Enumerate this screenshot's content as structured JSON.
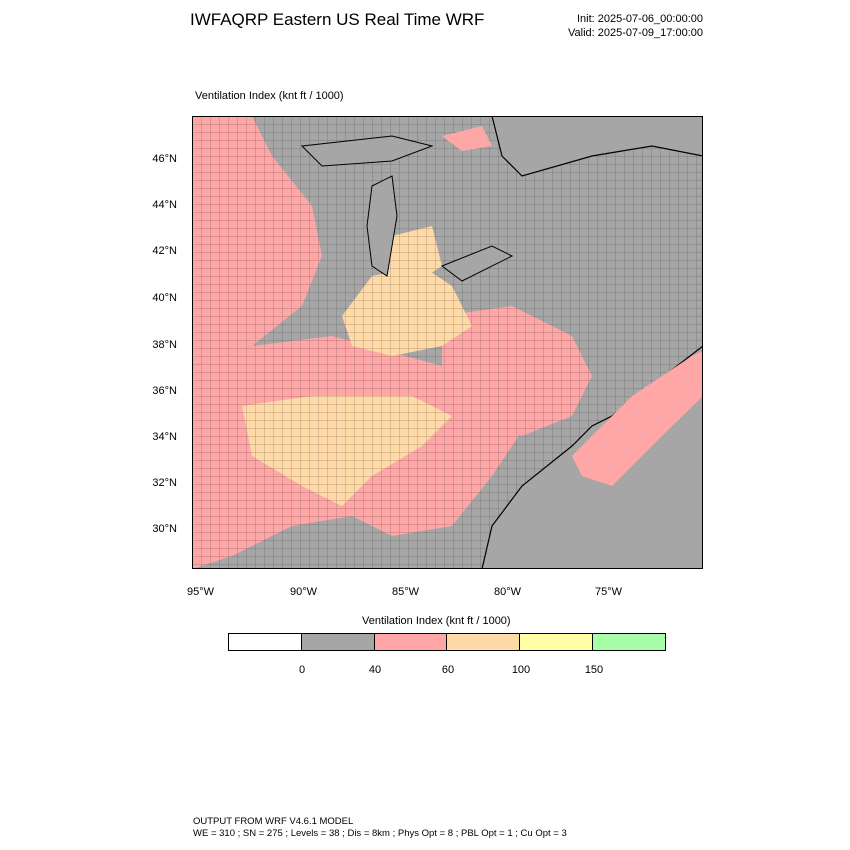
{
  "header": {
    "title": "IWFAQRP Eastern US Real Time WRF",
    "init": "Init: 2025-07-06_00:00:00",
    "valid": "Valid: 2025-07-09_17:00:00"
  },
  "map": {
    "field_label": "Ventilation Index   (knt ft / 1000)",
    "lat_labels": [
      "46°N",
      "44°N",
      "42°N",
      "40°N",
      "38°N",
      "36°N",
      "34°N",
      "32°N",
      "30°N"
    ],
    "lon_labels": [
      "95°W",
      "90°W",
      "85°W",
      "80°W",
      "75°W"
    ],
    "colors": {
      "ocean": "#a6a6a6",
      "land_low": "#a6a6a6",
      "pink": "#ffa6a6",
      "orange": "#ffd9a6",
      "yellow": "#ffffa6",
      "lake": "#a6a6a6"
    }
  },
  "colorbar": {
    "title": "Ventilation Index  (knt ft / 1000)",
    "labels": [
      "0",
      "40",
      "60",
      "100",
      "150"
    ],
    "colors": [
      "#ffffff",
      "#a6a6a6",
      "#ffa6a6",
      "#ffd9a6",
      "#ffffa6",
      "#a6ffa6"
    ]
  },
  "footer": {
    "line1": "OUTPUT FROM WRF V4.6.1 MODEL",
    "line2": "WE = 310 ; SN = 275 ; Levels = 38 ; Dis = 8km ; Phys Opt = 8 ; PBL Opt = 1 ; Cu Opt = 3"
  }
}
